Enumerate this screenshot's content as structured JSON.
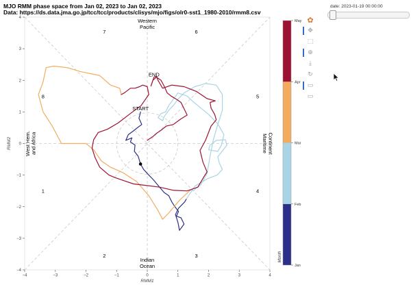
{
  "title": {
    "line1": "MJO RMM phase space from Jan 02, 2023 to Jan 02, 2023",
    "line2": "Data: https://ds.data.jma.go.jp/tcc/tcc/products/clisys/mjo/figs/olr0-sst1_1980-2010/rmm8.csv"
  },
  "slider": {
    "label": "date: 2023-01-19 00:00:00",
    "fraction": 0.06
  },
  "toolbar": {
    "tools": [
      {
        "name": "bokeh-logo-icon",
        "glyph": "✿",
        "active": false
      },
      {
        "name": "pan-tool-icon",
        "glyph": "✥",
        "active": true
      },
      {
        "name": "box-zoom-tool-icon",
        "glyph": "⬚",
        "active": false
      },
      {
        "name": "wheel-zoom-tool-icon",
        "glyph": "⊕",
        "active": true
      },
      {
        "name": "save-tool-icon",
        "glyph": "⤓",
        "active": false
      },
      {
        "name": "reset-tool-icon",
        "glyph": "↻",
        "active": false
      },
      {
        "name": "hover-tool-icon",
        "glyph": "▭",
        "active": true
      },
      {
        "name": "hover-tool-2-icon",
        "glyph": "▭",
        "active": false
      }
    ]
  },
  "chart_data": {
    "type": "line",
    "title": "MJO RMM phase space from Jan 02, 2023 to Jan 02, 2023",
    "xlabel": "RMM1",
    "ylabel": "RMM2",
    "xlim": [
      -4,
      4
    ],
    "ylim": [
      -4,
      4
    ],
    "xticks": [
      -4,
      -3,
      -2,
      -1,
      0,
      1,
      2,
      3,
      4
    ],
    "yticks": [
      -4,
      -3,
      -2,
      -1,
      0,
      1,
      2,
      3,
      4
    ],
    "grid": false,
    "region_labels": {
      "top": [
        "Western",
        "Pacific"
      ],
      "bottom": [
        "Indian",
        "Ocean"
      ],
      "left": [
        "West Hem.",
        "and Africa"
      ],
      "right": [
        "Maritime",
        "Continent"
      ]
    },
    "phase_labels": [
      {
        "text": "1",
        "x": -3.4,
        "y": -1.5
      },
      {
        "text": "2",
        "x": -1.4,
        "y": -3.55
      },
      {
        "text": "3",
        "x": 1.6,
        "y": -3.55
      },
      {
        "text": "4",
        "x": 3.6,
        "y": -1.5
      },
      {
        "text": "5",
        "x": 3.6,
        "y": 1.5
      },
      {
        "text": "6",
        "x": 1.6,
        "y": 3.55
      },
      {
        "text": "7",
        "x": -1.4,
        "y": 3.55
      },
      {
        "text": "8",
        "x": -3.4,
        "y": 1.5
      }
    ],
    "annotations": [
      {
        "text": "START",
        "x": -0.22,
        "y": 1.05
      },
      {
        "text": "END",
        "x": 0.22,
        "y": 2.12
      }
    ],
    "marker": {
      "x": -0.22,
      "y": -0.65
    },
    "colorbar": {
      "label": "Month",
      "months": [
        "Jan",
        "Feb",
        "Mar",
        "Apr",
        "May"
      ],
      "colors": [
        "#2c2f87",
        "#a9d4e6",
        "#f3ab5e",
        "#9c1230"
      ]
    },
    "series": [
      {
        "month": "Jan",
        "color": "#2c2f87",
        "x": [
          -0.22,
          -0.27,
          -0.18,
          -0.32,
          -0.45,
          -0.62,
          -0.7,
          -0.5,
          -0.55,
          -0.4,
          -0.42,
          -0.3,
          -0.25,
          -0.22,
          -0.12,
          0.05,
          0.2,
          0.4,
          0.55,
          0.7,
          0.8,
          0.9,
          1.02,
          0.95,
          1.1,
          1.2,
          1.05,
          1.0,
          0.92,
          1.02,
          1.12,
          1.22,
          1.28
        ],
        "y": [
          1.0,
          0.8,
          0.6,
          0.5,
          0.4,
          0.28,
          0.1,
          0.18,
          0.05,
          -0.05,
          -0.25,
          -0.4,
          -0.55,
          -0.65,
          -0.82,
          -1.0,
          -1.15,
          -1.38,
          -1.55,
          -1.65,
          -1.85,
          -2.0,
          -2.15,
          -2.3,
          -2.35,
          -2.55,
          -2.75,
          -2.5,
          -2.25,
          -2.05,
          -1.95,
          -1.85,
          -1.75
        ]
      },
      {
        "month": "Feb",
        "color": "#a9d4e6",
        "x": [
          1.28,
          1.55,
          1.95,
          2.28,
          2.45,
          2.35,
          2.3,
          2.4,
          2.6,
          2.55,
          2.25,
          2.05,
          2.0,
          2.3,
          2.42,
          2.5,
          2.3,
          2.0,
          1.75,
          1.5,
          1.3,
          1.0,
          0.85,
          0.7,
          0.6,
          0.45,
          0.35,
          0.5,
          0.55,
          0.7,
          0.85,
          1.0,
          1.2,
          1.55,
          1.9,
          2.25,
          2.45,
          2.45,
          2.3,
          2.15,
          2.05,
          1.95,
          1.75,
          1.55,
          1.5,
          1.4
        ],
        "y": [
          -1.75,
          -1.35,
          -1.12,
          -1.0,
          -0.82,
          -0.62,
          -0.42,
          -0.3,
          -0.05,
          0.12,
          0.1,
          -0.05,
          -0.2,
          -0.25,
          -0.05,
          0.28,
          0.62,
          0.92,
          1.12,
          1.32,
          1.5,
          1.6,
          1.4,
          1.2,
          1.0,
          0.95,
          0.82,
          0.72,
          0.85,
          1.05,
          1.2,
          1.4,
          1.6,
          1.8,
          1.9,
          1.85,
          1.55,
          1.05,
          0.6,
          0.1,
          -0.4,
          -0.95,
          -1.3,
          -1.45,
          -1.5,
          -1.48
        ]
      },
      {
        "month": "Mar",
        "color": "#f3ab5e",
        "x": [
          1.4,
          1.05,
          0.7,
          0.5,
          0.35,
          0.05,
          -0.35,
          -0.8,
          -1.2,
          -1.5,
          -1.75,
          -2.0,
          -2.4,
          -2.8,
          -3.1,
          -3.4,
          -3.55,
          -3.4,
          -3.3,
          -3.05,
          -2.6,
          -2.2,
          -1.8,
          -1.55,
          -1.2,
          -0.9,
          -0.85
        ],
        "y": [
          -1.48,
          -1.8,
          -2.2,
          -2.4,
          -2.12,
          -1.65,
          -1.2,
          -0.92,
          -0.75,
          -0.55,
          -0.2,
          0.0,
          0.0,
          0.0,
          0.55,
          1.0,
          1.55,
          1.95,
          2.4,
          2.45,
          2.4,
          2.28,
          2.2,
          2.15,
          1.85,
          1.75,
          1.55
        ]
      },
      {
        "month": "Apr",
        "color": "#9c1230",
        "x": [
          -0.85,
          -0.75,
          -0.55,
          -0.4,
          -0.25,
          -0.15,
          0.0,
          0.05,
          -0.2,
          -0.55,
          -0.95,
          -1.3,
          -1.6,
          -1.75,
          -1.8,
          -1.7,
          -1.55,
          -1.25,
          -1.05,
          -0.75,
          -0.45,
          -0.1,
          0.4,
          0.85,
          1.3,
          1.65,
          1.85,
          1.95,
          1.82,
          1.72,
          1.9,
          2.08,
          2.25,
          2.2,
          2.08,
          2.05,
          2.22,
          1.95,
          1.6,
          1.2,
          0.8,
          0.5,
          0.35,
          0.3,
          0.22,
          0.15,
          0.12,
          0.18,
          0.3,
          0.45,
          0.55,
          0.65,
          0.78,
          0.95,
          1.1,
          1.2,
          1.3,
          1.1,
          0.85,
          0.62,
          0.45,
          0.3,
          0.18,
          0.0
        ],
        "y": [
          1.55,
          1.6,
          1.75,
          1.75,
          1.8,
          1.85,
          1.8,
          1.55,
          1.2,
          0.95,
          0.65,
          0.45,
          0.35,
          0.12,
          -0.15,
          -0.45,
          -0.75,
          -1.0,
          -1.08,
          -1.18,
          -1.28,
          -1.32,
          -1.38,
          -1.48,
          -1.5,
          -1.38,
          -1.05,
          -0.9,
          -0.6,
          -0.22,
          0.1,
          0.55,
          0.75,
          0.92,
          1.12,
          1.3,
          1.35,
          1.42,
          1.65,
          1.8,
          1.85,
          1.75,
          2.0,
          2.12,
          2.1,
          1.9,
          1.82,
          2.0,
          2.1,
          2.0,
          1.82,
          1.6,
          1.5,
          1.4,
          1.3,
          1.1,
          0.9,
          0.78,
          0.6,
          0.55,
          0.42,
          0.32,
          0.22,
          0.1
        ]
      }
    ]
  }
}
